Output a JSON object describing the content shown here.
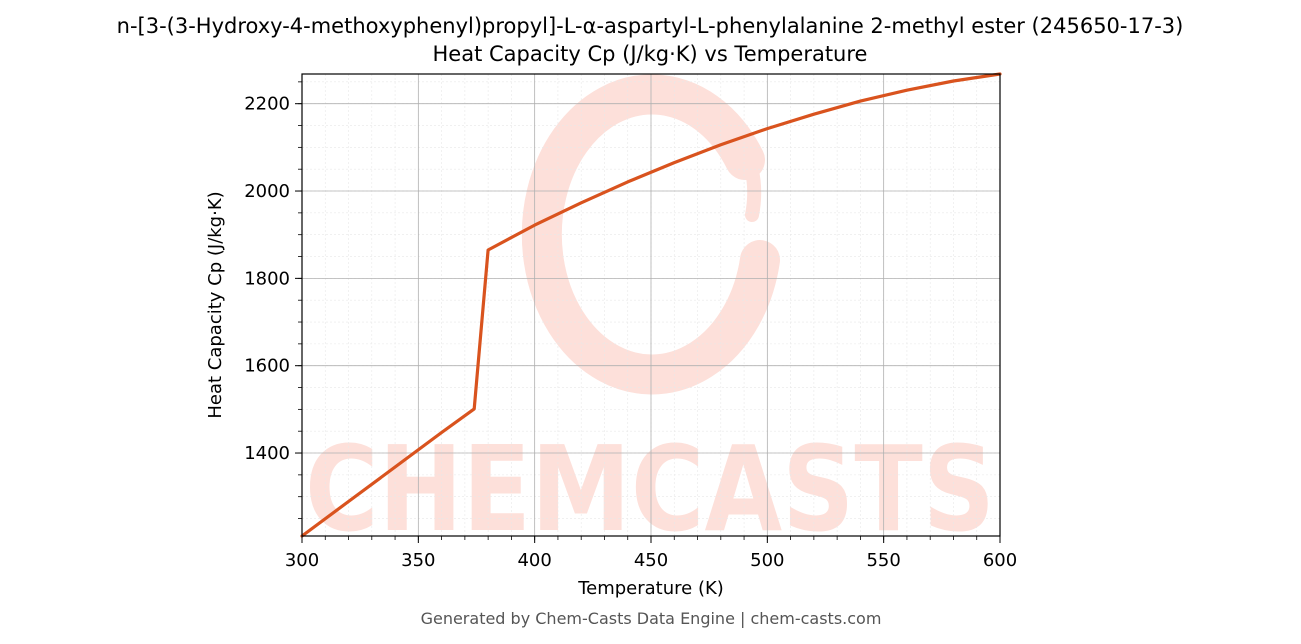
{
  "chart_data": {
    "type": "line",
    "title_line1": "n-[3-(3-Hydroxy-4-methoxyphenyl)propyl]-L-α-aspartyl-L-phenylalanine 2-methyl ester (245650-17-3)",
    "title_line2": "Heat Capacity Cp (J/kg·K) vs Temperature",
    "xlabel": "Temperature (K)",
    "ylabel": "Heat Capacity Cp (J/kg·K)",
    "xlim": [
      300,
      600
    ],
    "ylim": [
      1210,
      2268
    ],
    "x_ticks": [
      300,
      350,
      400,
      450,
      500,
      550,
      600
    ],
    "y_ticks": [
      1400,
      1600,
      1800,
      2000,
      2200
    ],
    "grid": true,
    "legend": "none",
    "series": [
      {
        "color": "#d9531e",
        "x": [
          300,
          320,
          340,
          360,
          374,
          380,
          400,
          420,
          440,
          460,
          480,
          500,
          520,
          540,
          560,
          580,
          600
        ],
        "y": [
          1210,
          1289,
          1368,
          1447,
          1501,
          1865,
          1922,
          1973,
          2021,
          2065,
          2106,
          2143,
          2176,
          2206,
          2231,
          2252,
          2268
        ]
      }
    ]
  },
  "watermark": {
    "text": "CHEMCASTS",
    "color": "#fde0da"
  },
  "footer": {
    "text": "Generated by Chem-Casts Data Engine | chem-casts.com"
  }
}
